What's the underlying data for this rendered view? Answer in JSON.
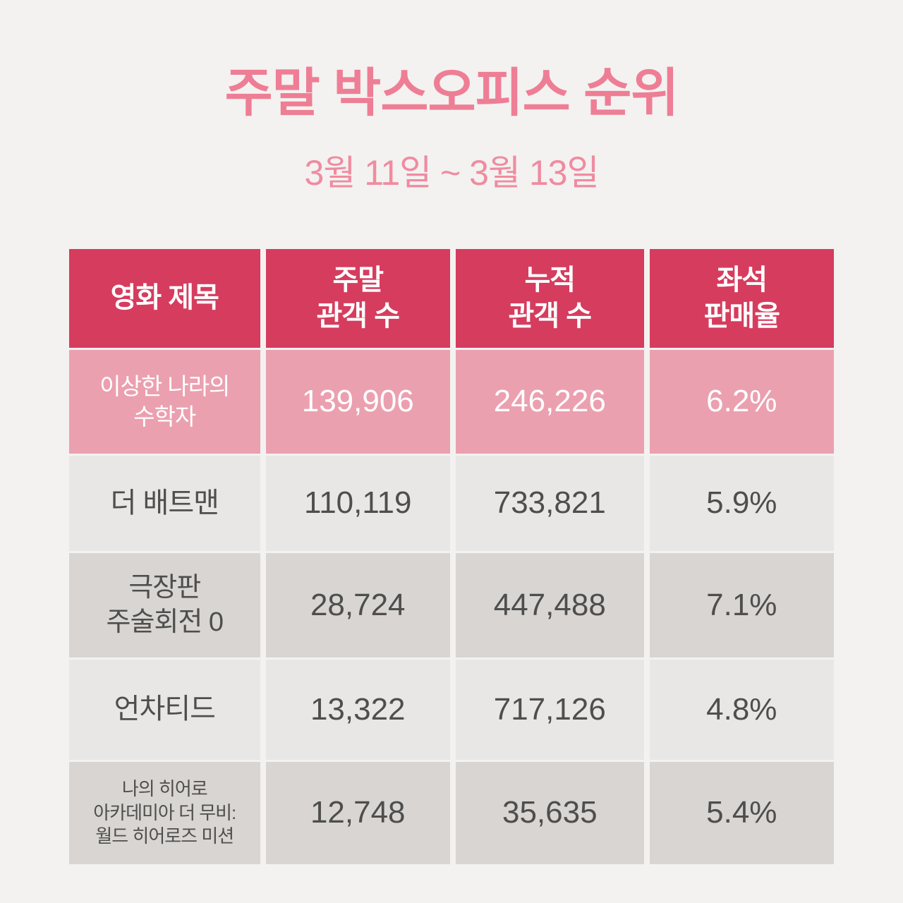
{
  "header": {
    "title": "주말 박스오피스 순위",
    "subtitle": "3월 11일 ~ 3월 13일"
  },
  "colors": {
    "background": "#f3f2f0",
    "title_pink": "#ee7e95",
    "header_row_bg": "#d63c5e",
    "highlight_row_bg": "#eba0af",
    "row_light_bg": "#e9e7e5",
    "row_dark_bg": "#d8d5d2",
    "body_text": "#4e4e4e"
  },
  "table": {
    "headers": [
      "영화 제목",
      "주말\n관객 수",
      "누적\n관객 수",
      "좌석\n판매율"
    ],
    "rows": [
      {
        "title": "이상한 나라의\n수학자",
        "weekend": "139,906",
        "cumulative": "246,226",
        "seat_rate": "6.2%"
      },
      {
        "title": "더 배트맨",
        "weekend": "110,119",
        "cumulative": "733,821",
        "seat_rate": "5.9%"
      },
      {
        "title": "극장판\n주술회전 0",
        "weekend": "28,724",
        "cumulative": "447,488",
        "seat_rate": "7.1%"
      },
      {
        "title": "언차티드",
        "weekend": "13,322",
        "cumulative": "717,126",
        "seat_rate": "4.8%"
      },
      {
        "title": "나의 히어로\n아카데미아 더 무비:\n월드 히어로즈 미션",
        "weekend": "12,748",
        "cumulative": "35,635",
        "seat_rate": "5.4%"
      }
    ]
  },
  "chart_data": {
    "type": "table",
    "title": "주말 박스오피스 순위",
    "subtitle": "3월 11일 ~ 3월 13일",
    "columns": [
      "영화 제목",
      "주말 관객 수",
      "누적 관객 수",
      "좌석 판매율"
    ],
    "rows": [
      [
        "이상한 나라의 수학자",
        139906,
        246226,
        "6.2%"
      ],
      [
        "더 배트맨",
        110119,
        733821,
        "5.9%"
      ],
      [
        "극장판 주술회전 0",
        28724,
        447488,
        "7.1%"
      ],
      [
        "언차티드",
        13322,
        717126,
        "4.8%"
      ],
      [
        "나의 히어로 아카데미아 더 무비: 월드 히어로즈 미션",
        12748,
        35635,
        "5.4%"
      ]
    ],
    "layout_hints": {
      "highlighted_row_index": 0,
      "alternating_row_shading": true
    }
  }
}
